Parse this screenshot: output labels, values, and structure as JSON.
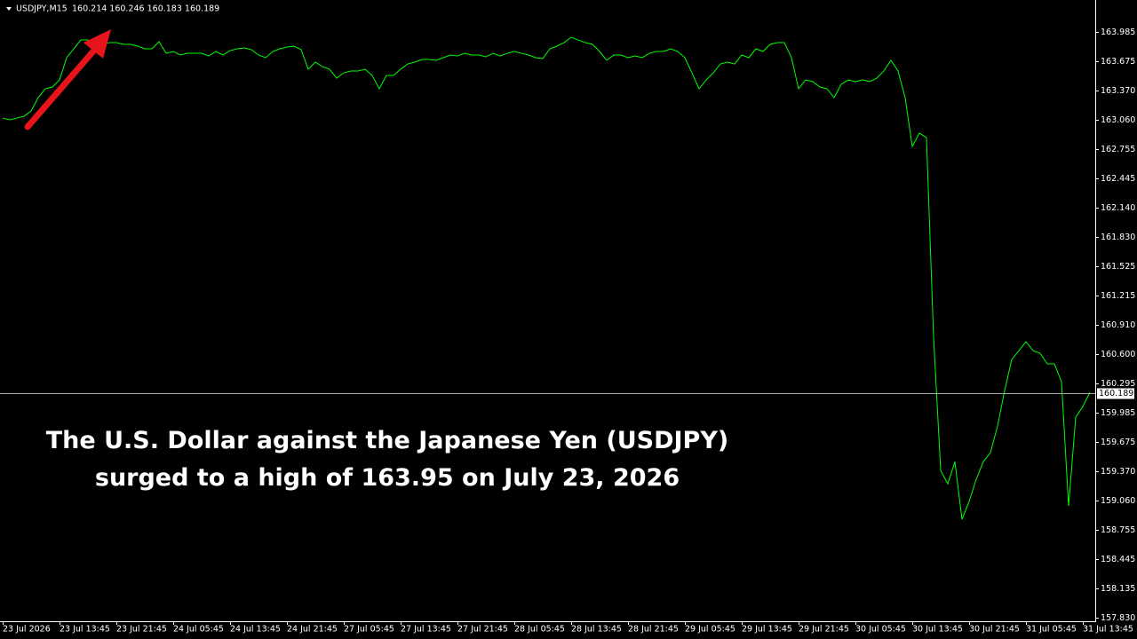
{
  "chart_data": {
    "type": "line",
    "symbol": "USDJPY,M15",
    "quote": "160.214 160.246 160.183 160.189",
    "annotation": [
      "The U.S. Dollar against the Japanese Yen (USDJPY)",
      "surged to a high of 163.95 on July 23, 2026"
    ],
    "color": "#00ff00",
    "current_price": 160.189,
    "categories": [
      "23 Jul 2026",
      null,
      null,
      null,
      null,
      null,
      null,
      null,
      "23 Jul 13:45",
      null,
      null,
      null,
      null,
      null,
      null,
      null,
      "23 Jul 21:45",
      null,
      null,
      null,
      null,
      null,
      null,
      null,
      "24 Jul 05:45",
      null,
      null,
      null,
      null,
      null,
      null,
      null,
      "24 Jul 13:45",
      null,
      null,
      null,
      null,
      null,
      null,
      null,
      "24 Jul 21:45",
      null,
      null,
      null,
      null,
      null,
      null,
      null,
      "27 Jul 05:45",
      null,
      null,
      null,
      null,
      null,
      null,
      null,
      "27 Jul 13:45",
      null,
      null,
      null,
      null,
      null,
      null,
      null,
      "27 Jul 21:45",
      null,
      null,
      null,
      null,
      null,
      null,
      null,
      "28 Jul 05:45",
      null,
      null,
      null,
      null,
      null,
      null,
      null,
      "28 Jul 13:45",
      null,
      null,
      null,
      null,
      null,
      null,
      null,
      "28 Jul 21:45",
      null,
      null,
      null,
      null,
      null,
      null,
      null,
      "29 Jul 05:45",
      null,
      null,
      null,
      null,
      null,
      null,
      null,
      "29 Jul 13:45",
      null,
      null,
      null,
      null,
      null,
      null,
      null,
      "29 Jul 21:45",
      null,
      null,
      null,
      null,
      null,
      null,
      null,
      "30 Jul 05:45",
      null,
      null,
      null,
      null,
      null,
      null,
      null,
      "30 Jul 13:45",
      null,
      null,
      null,
      null,
      null,
      null,
      null,
      "30 Jul 21:45",
      null,
      null,
      null,
      null,
      null,
      null,
      null,
      "31 Jul 05:45",
      null,
      null,
      null,
      null,
      null,
      null,
      null,
      "31 Jul 13:45",
      null
    ],
    "values": [
      163.08,
      163.062,
      163.08,
      163.099,
      163.155,
      163.295,
      163.388,
      163.407,
      163.481,
      163.715,
      163.808,
      163.901,
      163.901,
      163.855,
      163.855,
      163.873,
      163.873,
      163.855,
      163.855,
      163.836,
      163.808,
      163.808,
      163.883,
      163.761,
      163.78,
      163.743,
      163.761,
      163.761,
      163.761,
      163.733,
      163.78,
      163.743,
      163.789,
      163.808,
      163.817,
      163.799,
      163.743,
      163.715,
      163.78,
      163.808,
      163.827,
      163.836,
      163.799,
      163.593,
      163.668,
      163.621,
      163.593,
      163.5,
      163.556,
      163.575,
      163.575,
      163.593,
      163.528,
      163.388,
      163.528,
      163.528,
      163.593,
      163.649,
      163.668,
      163.696,
      163.696,
      163.687,
      163.715,
      163.743,
      163.733,
      163.761,
      163.743,
      163.743,
      163.724,
      163.761,
      163.733,
      163.761,
      163.78,
      163.761,
      163.743,
      163.715,
      163.705,
      163.808,
      163.836,
      163.873,
      163.929,
      163.901,
      163.873,
      163.855,
      163.78,
      163.687,
      163.743,
      163.743,
      163.715,
      163.733,
      163.715,
      163.761,
      163.78,
      163.78,
      163.808,
      163.78,
      163.715,
      163.556,
      163.388,
      163.481,
      163.556,
      163.649,
      163.668,
      163.649,
      163.743,
      163.715,
      163.808,
      163.78,
      163.855,
      163.873,
      163.873,
      163.715,
      163.388,
      163.481,
      163.463,
      163.407,
      163.388,
      163.295,
      163.435,
      163.481,
      163.463,
      163.481,
      163.463,
      163.5,
      163.575,
      163.687,
      163.575,
      163.295,
      162.782,
      162.922,
      162.875,
      160.776,
      159.377,
      159.237,
      159.47,
      158.864,
      159.051,
      159.284,
      159.47,
      159.564,
      159.844,
      160.217,
      160.543,
      160.636,
      160.73,
      160.636,
      160.608,
      160.497,
      160.497,
      160.31,
      159.004,
      159.937,
      160.049,
      160.198
    ],
    "ylim": [
      157.793,
      164.321
    ],
    "yticks": [
      163.985,
      163.675,
      {
        "value": 163.37,
        "label": "163.370"
      },
      {
        "value": 163.06,
        "label": "163.060"
      },
      162.755,
      162.445,
      {
        "value": 162.14,
        "label": "162.140"
      },
      {
        "value": 161.83,
        "label": "161.830"
      },
      161.525,
      161.215,
      {
        "value": 160.91,
        "label": "160.910"
      },
      {
        "value": 160.6,
        "label": "160.600"
      },
      160.295,
      159.985,
      159.675,
      {
        "value": 159.37,
        "label": "159.370"
      },
      {
        "value": 159.06,
        "label": "159.060"
      },
      158.755,
      158.445,
      158.135,
      {
        "value": 157.83,
        "label": "157.830"
      }
    ]
  }
}
